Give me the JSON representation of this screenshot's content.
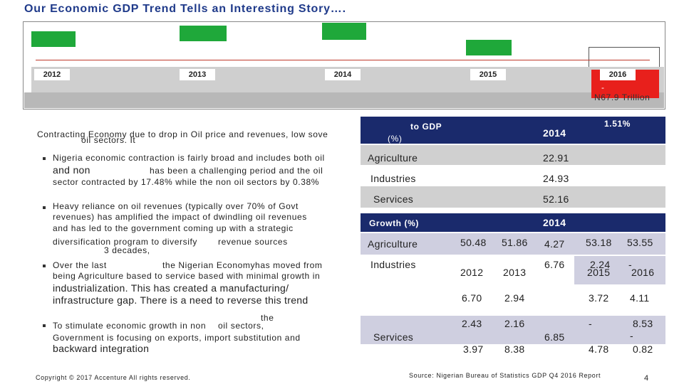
{
  "header": {
    "title": "Our Economic GDP Trend Tells an Interesting Story….",
    "years": [
      "2012",
      "2013",
      "2014",
      "2015",
      "2016"
    ],
    "dash": "-",
    "gdp_2016": "N67.9 Trillion"
  },
  "intro": [
    "Contracting Economy due to drop in Oil price and revenues, low sove",
    "oil sectors. It"
  ],
  "bullets": [
    [
      "Nigeria economic contraction is fairly broad and includes both oil",
      "and non",
      "has been a challenging period and the oil",
      "sector contracted by 17.48% while the non oil sectors by 0.38%"
    ],
    [
      "Heavy reliance on oil revenues (typically over 70% of Govt",
      "revenues) has amplified the impact of dwindling oil revenues",
      "and has led to the government coming up with a strategic",
      "diversification program to diversify",
      "revenue sources",
      "3 decades,"
    ],
    [
      "Over the last",
      "the Nigerian Economyhas moved from",
      "being Agriculture based to service based with minimal growth in",
      "industrialization. This has created a manufacturing/",
      "infrastructure gap. There is a need to reverse this trend"
    ],
    [
      "To stimulate economic growth in non",
      "oil sectors,",
      "the",
      "Government is focusing on exports, import substitution and",
      "backward integration"
    ]
  ],
  "share_table": {
    "title": "to GDP",
    "unit": "(%)",
    "year": "2014",
    "rate": "1.51%",
    "rows": [
      [
        "Agriculture",
        "22.91"
      ],
      [
        "Industries",
        "24.93"
      ],
      [
        "Services",
        "52.16"
      ]
    ]
  },
  "growth_table": {
    "title": "Growth (%)",
    "year": "2014",
    "rows": [
      "Agriculture",
      "Industries",
      "Services"
    ],
    "cells": [
      "50.48",
      "51.86",
      "4.27",
      "53.18",
      "53.55",
      "2012",
      "2013",
      "6.76",
      "2.24",
      "2015",
      "-",
      "2016",
      "6.70",
      "2.94",
      "3.72",
      "4.11",
      "2.43",
      "2.16",
      "-",
      "8.53",
      "-",
      "6.85",
      "3.97",
      "8.38",
      "4.78",
      "0.82"
    ]
  },
  "footer": {
    "copyright": "Copyright © 2017 Accenture All rights reserved.",
    "source": "Source: Nigerian Bureau of Statistics GDP Q4 2016 Report",
    "page": "4"
  }
}
